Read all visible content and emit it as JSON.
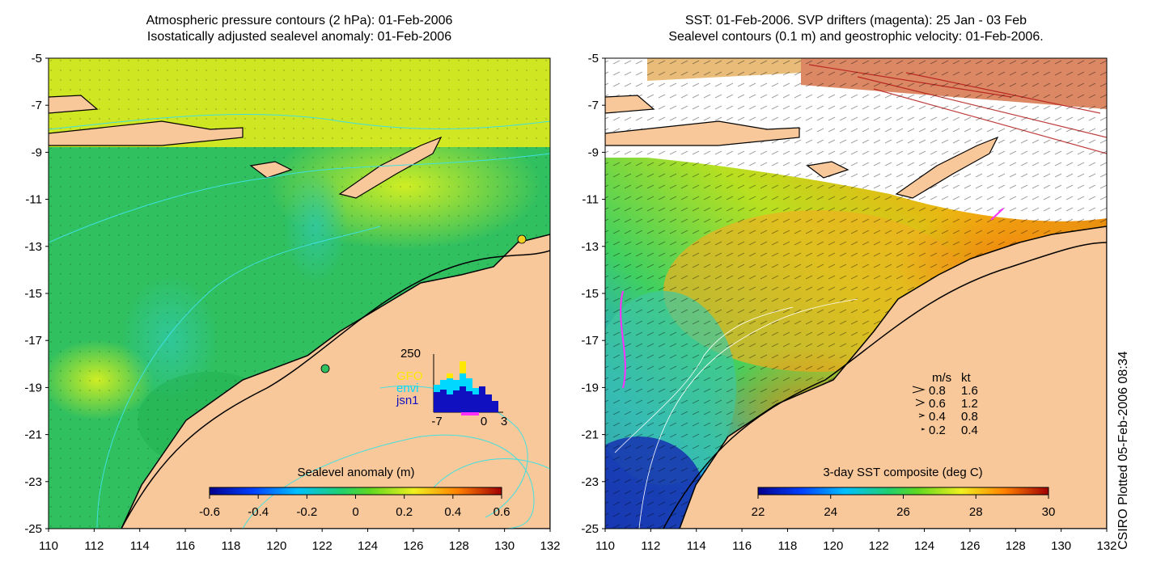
{
  "left_panel": {
    "title_line1": "Atmospheric pressure contours (2 hPa): 01-Feb-2006",
    "title_line2": "Isostatically adjusted sealevel anomaly: 01-Feb-2006",
    "colorbar": {
      "title": "Sealevel anomaly (m)",
      "ticks": [
        "-0.6",
        "-0.4",
        "-0.2",
        "0",
        "0.2",
        "0.4",
        "0.6"
      ],
      "range": [
        -0.6,
        0.6
      ]
    },
    "histogram": {
      "ymax_label": "250",
      "x_labels": [
        "-7",
        "0",
        "3"
      ],
      "legend": [
        {
          "name": "GFO",
          "color": "#ffe800"
        },
        {
          "name": "envi",
          "color": "#00d8ff"
        },
        {
          "name": "jsn1",
          "color": "#1010c0"
        }
      ]
    }
  },
  "right_panel": {
    "title_line1": "SST: 01-Feb-2006. SVP drifters (magenta): 25 Jan - 03 Feb",
    "title_line2": "Sealevel contours (0.1 m) and geostrophic velocity: 01-Feb-2006.",
    "colorbar": {
      "title": "3-day SST composite (deg C)",
      "ticks": [
        "22",
        "24",
        "26",
        "28",
        "30"
      ],
      "range": [
        22,
        30
      ]
    },
    "velocity_legend": {
      "header_ms": "m/s",
      "header_kt": "kt",
      "rows": [
        {
          "ms": "0.8",
          "kt": "1.6"
        },
        {
          "ms": "0.6",
          "kt": "1.2"
        },
        {
          "ms": "0.4",
          "kt": "0.8"
        },
        {
          "ms": "0.2",
          "kt": "0.4"
        }
      ]
    }
  },
  "axes": {
    "x_ticks": [
      "110",
      "112",
      "114",
      "116",
      "118",
      "120",
      "122",
      "124",
      "126",
      "128",
      "130",
      "132"
    ],
    "y_ticks": [
      "-5",
      "-7",
      "-9",
      "-11",
      "-13",
      "-15",
      "-17",
      "-19",
      "-21",
      "-23",
      "-25"
    ],
    "lon_range": [
      110,
      132
    ],
    "lat_range": [
      -25,
      -5
    ]
  },
  "credit": "CSIRO Plotted 05-Feb-2006 08:34",
  "colors": {
    "land": "#f9c89a",
    "coast": "#000000",
    "contour_pressure": "#40e0e0",
    "contour_sealevel": "#ffffff",
    "drifter": "#ff30ff"
  }
}
